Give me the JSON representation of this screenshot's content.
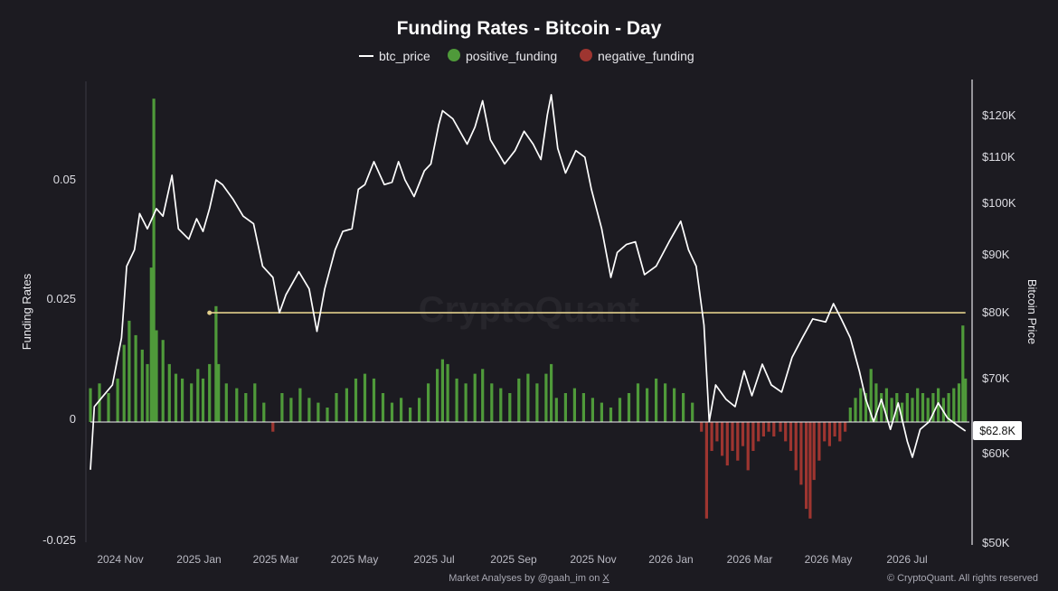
{
  "chart_data": {
    "type": "bar",
    "title": "Funding Rates - Bitcoin - Day",
    "watermark": "CryptoQuant",
    "y_left_label": "Funding Rates",
    "y_right_label": "Bitcoin Price",
    "y_left_ticks": [
      "0.05",
      "0.025",
      "0",
      "-0.025"
    ],
    "y_left_range": [
      -0.025,
      0.065
    ],
    "y_right_ticks": [
      "$120K",
      "$110K",
      "$100K",
      "$90K",
      "$80K",
      "$70K",
      "$60K",
      "$50K"
    ],
    "y_right_range": [
      50000,
      127000
    ],
    "y_right_scale": "log",
    "x_ticks": [
      "2024 Nov",
      "2025 Jan",
      "2025 Mar",
      "2025 May",
      "2025 Jul",
      "2025 Sep",
      "2025 Nov",
      "2026 Jan",
      "2026 Mar",
      "2026 May",
      "2026 Jul"
    ],
    "x_range": [
      "2024-10-15",
      "2026-08-25"
    ],
    "legend": [
      "btc_price",
      "positive_funding",
      "negative_funding"
    ],
    "legend_position": "top-center",
    "colors": {
      "btc_price": "#ffffff",
      "positive_funding": "#4f9a3a",
      "negative_funding": "#9e3530",
      "reference_line": "#e2cf8c",
      "background": "#1c1b21"
    },
    "current_price_label": "$62.8K",
    "reference_line": {
      "start_date": "2025-01-15",
      "end_date": "2026-08-22",
      "price": 80000
    },
    "btc_price": [
      [
        "2024-10-15",
        58000
      ],
      [
        "2024-10-18",
        66000
      ],
      [
        "2024-10-25",
        67500
      ],
      [
        "2024-11-01",
        69000
      ],
      [
        "2024-11-08",
        76000
      ],
      [
        "2024-11-12",
        88000
      ],
      [
        "2024-11-18",
        91000
      ],
      [
        "2024-11-22",
        98000
      ],
      [
        "2024-11-28",
        95000
      ],
      [
        "2024-12-05",
        99000
      ],
      [
        "2024-12-10",
        97500
      ],
      [
        "2024-12-17",
        106000
      ],
      [
        "2024-12-22",
        95000
      ],
      [
        "2024-12-30",
        93000
      ],
      [
        "2025-01-05",
        97000
      ],
      [
        "2025-01-10",
        94500
      ],
      [
        "2025-01-15",
        99000
      ],
      [
        "2025-01-20",
        105000
      ],
      [
        "2025-01-25",
        104000
      ],
      [
        "2025-02-02",
        101000
      ],
      [
        "2025-02-10",
        97500
      ],
      [
        "2025-02-18",
        96000
      ],
      [
        "2025-02-25",
        88000
      ],
      [
        "2025-03-05",
        86000
      ],
      [
        "2025-03-10",
        80000
      ],
      [
        "2025-03-15",
        83000
      ],
      [
        "2025-03-25",
        87000
      ],
      [
        "2025-04-02",
        84000
      ],
      [
        "2025-04-08",
        77000
      ],
      [
        "2025-04-14",
        84000
      ],
      [
        "2025-04-22",
        91000
      ],
      [
        "2025-04-28",
        94500
      ],
      [
        "2025-05-05",
        95000
      ],
      [
        "2025-05-10",
        103000
      ],
      [
        "2025-05-15",
        104000
      ],
      [
        "2025-05-22",
        109000
      ],
      [
        "2025-05-30",
        104000
      ],
      [
        "2025-06-05",
        104500
      ],
      [
        "2025-06-10",
        109000
      ],
      [
        "2025-06-15",
        105000
      ],
      [
        "2025-06-22",
        101500
      ],
      [
        "2025-06-30",
        107000
      ],
      [
        "2025-07-05",
        108500
      ],
      [
        "2025-07-11",
        117500
      ],
      [
        "2025-07-14",
        121000
      ],
      [
        "2025-07-22",
        119000
      ],
      [
        "2025-08-02",
        113000
      ],
      [
        "2025-08-08",
        117000
      ],
      [
        "2025-08-14",
        123500
      ],
      [
        "2025-08-20",
        114000
      ],
      [
        "2025-08-26",
        111000
      ],
      [
        "2025-08-31",
        108500
      ],
      [
        "2025-09-08",
        111500
      ],
      [
        "2025-09-15",
        116000
      ],
      [
        "2025-09-22",
        113000
      ],
      [
        "2025-09-28",
        109500
      ],
      [
        "2025-10-03",
        120000
      ],
      [
        "2025-10-06",
        125000
      ],
      [
        "2025-10-11",
        112000
      ],
      [
        "2025-10-17",
        106500
      ],
      [
        "2025-10-25",
        111500
      ],
      [
        "2025-11-01",
        110000
      ],
      [
        "2025-11-06",
        103000
      ],
      [
        "2025-11-14",
        95000
      ],
      [
        "2025-11-21",
        86000
      ],
      [
        "2025-11-26",
        90500
      ],
      [
        "2025-12-03",
        92000
      ],
      [
        "2025-12-10",
        92500
      ],
      [
        "2025-12-17",
        86500
      ],
      [
        "2025-12-26",
        88000
      ],
      [
        "2026-01-05",
        92500
      ],
      [
        "2026-01-14",
        96500
      ],
      [
        "2026-01-20",
        91000
      ],
      [
        "2026-01-26",
        88000
      ],
      [
        "2026-02-01",
        78000
      ],
      [
        "2026-02-05",
        64000
      ],
      [
        "2026-02-10",
        69000
      ],
      [
        "2026-02-18",
        67000
      ],
      [
        "2026-02-25",
        66000
      ],
      [
        "2026-03-04",
        71000
      ],
      [
        "2026-03-10",
        67500
      ],
      [
        "2026-03-18",
        72000
      ],
      [
        "2026-03-25",
        69000
      ],
      [
        "2026-04-02",
        68000
      ],
      [
        "2026-04-10",
        73000
      ],
      [
        "2026-04-18",
        76000
      ],
      [
        "2026-04-26",
        79000
      ],
      [
        "2026-05-06",
        78500
      ],
      [
        "2026-05-12",
        81500
      ],
      [
        "2026-05-18",
        79000
      ],
      [
        "2026-05-25",
        76000
      ],
      [
        "2026-06-01",
        71000
      ],
      [
        "2026-06-06",
        67000
      ],
      [
        "2026-06-12",
        64000
      ],
      [
        "2026-06-18",
        67000
      ],
      [
        "2026-06-25",
        63000
      ],
      [
        "2026-07-01",
        66500
      ],
      [
        "2026-07-08",
        61500
      ],
      [
        "2026-07-12",
        59500
      ],
      [
        "2026-07-18",
        63000
      ],
      [
        "2026-07-25",
        64000
      ],
      [
        "2026-08-01",
        66500
      ],
      [
        "2026-08-08",
        64500
      ],
      [
        "2026-08-16",
        63500
      ],
      [
        "2026-08-22",
        62800
      ]
    ],
    "funding_rate": [
      [
        "2024-10-15",
        0.007
      ],
      [
        "2024-10-22",
        0.008
      ],
      [
        "2024-10-29",
        0.006
      ],
      [
        "2024-11-05",
        0.009
      ],
      [
        "2024-11-10",
        0.016
      ],
      [
        "2024-11-14",
        0.021
      ],
      [
        "2024-11-19",
        0.018
      ],
      [
        "2024-11-24",
        0.015
      ],
      [
        "2024-11-28",
        0.012
      ],
      [
        "2024-12-01",
        0.032
      ],
      [
        "2024-12-03",
        0.067
      ],
      [
        "2024-12-05",
        0.019
      ],
      [
        "2024-12-10",
        0.017
      ],
      [
        "2024-12-15",
        0.012
      ],
      [
        "2024-12-20",
        0.01
      ],
      [
        "2024-12-25",
        0.009
      ],
      [
        "2025-01-01",
        0.008
      ],
      [
        "2025-01-06",
        0.011
      ],
      [
        "2025-01-10",
        0.009
      ],
      [
        "2025-01-15",
        0.012
      ],
      [
        "2025-01-20",
        0.024
      ],
      [
        "2025-01-22",
        0.012
      ],
      [
        "2025-01-28",
        0.008
      ],
      [
        "2025-02-05",
        0.007
      ],
      [
        "2025-02-12",
        0.006
      ],
      [
        "2025-02-19",
        0.008
      ],
      [
        "2025-02-26",
        0.004
      ],
      [
        "2025-03-05",
        -0.002
      ],
      [
        "2025-03-12",
        0.006
      ],
      [
        "2025-03-19",
        0.005
      ],
      [
        "2025-03-26",
        0.007
      ],
      [
        "2025-04-02",
        0.005
      ],
      [
        "2025-04-09",
        0.004
      ],
      [
        "2025-04-16",
        0.003
      ],
      [
        "2025-04-23",
        0.006
      ],
      [
        "2025-05-01",
        0.007
      ],
      [
        "2025-05-08",
        0.009
      ],
      [
        "2025-05-15",
        0.01
      ],
      [
        "2025-05-22",
        0.009
      ],
      [
        "2025-05-29",
        0.006
      ],
      [
        "2025-06-05",
        0.004
      ],
      [
        "2025-06-12",
        0.005
      ],
      [
        "2025-06-19",
        0.003
      ],
      [
        "2025-06-26",
        0.005
      ],
      [
        "2025-07-03",
        0.008
      ],
      [
        "2025-07-10",
        0.011
      ],
      [
        "2025-07-14",
        0.013
      ],
      [
        "2025-07-18",
        0.012
      ],
      [
        "2025-07-25",
        0.009
      ],
      [
        "2025-08-01",
        0.008
      ],
      [
        "2025-08-08",
        0.01
      ],
      [
        "2025-08-14",
        0.011
      ],
      [
        "2025-08-21",
        0.008
      ],
      [
        "2025-08-28",
        0.007
      ],
      [
        "2025-09-04",
        0.006
      ],
      [
        "2025-09-11",
        0.009
      ],
      [
        "2025-09-18",
        0.01
      ],
      [
        "2025-09-25",
        0.008
      ],
      [
        "2025-10-02",
        0.01
      ],
      [
        "2025-10-06",
        0.012
      ],
      [
        "2025-10-10",
        0.005
      ],
      [
        "2025-10-17",
        0.006
      ],
      [
        "2025-10-24",
        0.007
      ],
      [
        "2025-10-31",
        0.006
      ],
      [
        "2025-11-07",
        0.005
      ],
      [
        "2025-11-14",
        0.004
      ],
      [
        "2025-11-21",
        0.003
      ],
      [
        "2025-11-28",
        0.005
      ],
      [
        "2025-12-05",
        0.006
      ],
      [
        "2025-12-12",
        0.008
      ],
      [
        "2025-12-19",
        0.007
      ],
      [
        "2025-12-26",
        0.009
      ],
      [
        "2026-01-02",
        0.008
      ],
      [
        "2026-01-09",
        0.007
      ],
      [
        "2026-01-16",
        0.006
      ],
      [
        "2026-01-23",
        0.004
      ],
      [
        "2026-01-30",
        -0.002
      ],
      [
        "2026-02-03",
        -0.02
      ],
      [
        "2026-02-07",
        -0.006
      ],
      [
        "2026-02-11",
        -0.004
      ],
      [
        "2026-02-15",
        -0.007
      ],
      [
        "2026-02-19",
        -0.009
      ],
      [
        "2026-02-23",
        -0.006
      ],
      [
        "2026-02-27",
        -0.008
      ],
      [
        "2026-03-03",
        -0.005
      ],
      [
        "2026-03-07",
        -0.01
      ],
      [
        "2026-03-11",
        -0.006
      ],
      [
        "2026-03-15",
        -0.004
      ],
      [
        "2026-03-19",
        -0.003
      ],
      [
        "2026-03-23",
        -0.002
      ],
      [
        "2026-03-27",
        -0.003
      ],
      [
        "2026-04-01",
        -0.002
      ],
      [
        "2026-04-05",
        -0.004
      ],
      [
        "2026-04-09",
        -0.006
      ],
      [
        "2026-04-13",
        -0.01
      ],
      [
        "2026-04-17",
        -0.013
      ],
      [
        "2026-04-21",
        -0.018
      ],
      [
        "2026-04-24",
        -0.02
      ],
      [
        "2026-04-27",
        -0.012
      ],
      [
        "2026-05-01",
        -0.008
      ],
      [
        "2026-05-05",
        -0.004
      ],
      [
        "2026-05-09",
        -0.005
      ],
      [
        "2026-05-13",
        -0.003
      ],
      [
        "2026-05-17",
        -0.004
      ],
      [
        "2026-05-21",
        -0.002
      ],
      [
        "2026-05-25",
        0.003
      ],
      [
        "2026-05-29",
        0.005
      ],
      [
        "2026-06-02",
        0.007
      ],
      [
        "2026-06-06",
        0.006
      ],
      [
        "2026-06-10",
        0.011
      ],
      [
        "2026-06-14",
        0.008
      ],
      [
        "2026-06-18",
        0.006
      ],
      [
        "2026-06-22",
        0.007
      ],
      [
        "2026-06-26",
        0.005
      ],
      [
        "2026-06-30",
        0.006
      ],
      [
        "2026-07-04",
        0.004
      ],
      [
        "2026-07-08",
        0.006
      ],
      [
        "2026-07-12",
        0.005
      ],
      [
        "2026-07-16",
        0.007
      ],
      [
        "2026-07-20",
        0.006
      ],
      [
        "2026-07-24",
        0.005
      ],
      [
        "2026-07-28",
        0.006
      ],
      [
        "2026-08-01",
        0.007
      ],
      [
        "2026-08-05",
        0.005
      ],
      [
        "2026-08-09",
        0.006
      ],
      [
        "2026-08-13",
        0.007
      ],
      [
        "2026-08-17",
        0.008
      ],
      [
        "2026-08-20",
        0.02
      ],
      [
        "2026-08-22",
        0.009
      ]
    ]
  },
  "footer": {
    "attribution_prefix": "Market Analyses by @gaah_im on ",
    "attribution_link": "X",
    "copyright": "© CryptoQuant. All rights reserved"
  }
}
